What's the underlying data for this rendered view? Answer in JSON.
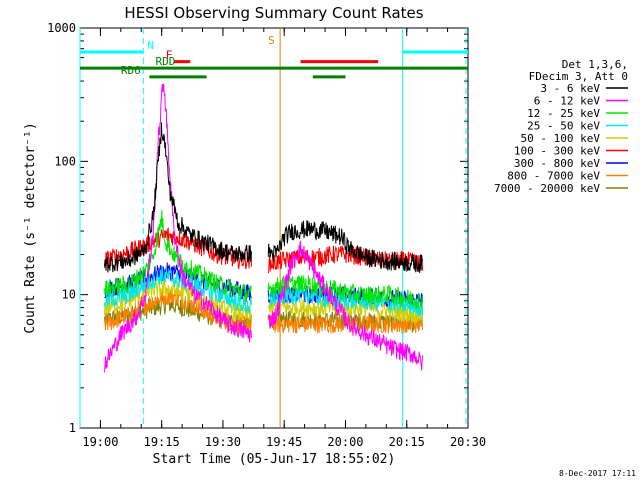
{
  "title": "HESSI Observing Summary Count Rates",
  "footer_date": "8-Dec-2017 17:11",
  "chart_data": {
    "type": "line",
    "xlabel": "Start Time (05-Jun-17 18:55:02)",
    "ylabel": "Count Rate (s⁻¹ detector⁻¹)",
    "yscale": "log",
    "ylim": [
      1,
      1000
    ],
    "xlim_minutes": [
      0,
      95
    ],
    "yticks": [
      {
        "v": 1,
        "label": "1"
      },
      {
        "v": 10,
        "label": "10"
      },
      {
        "v": 100,
        "label": "100"
      },
      {
        "v": 1000,
        "label": "1000"
      }
    ],
    "xticks": [
      {
        "t": 5,
        "label": "19:00"
      },
      {
        "t": 20,
        "label": "19:15"
      },
      {
        "t": 35,
        "label": "19:30"
      },
      {
        "t": 50,
        "label": "19:45"
      },
      {
        "t": 65,
        "label": "20:00"
      },
      {
        "t": 80,
        "label": "20:15"
      },
      {
        "t": 95,
        "label": "20:30"
      }
    ],
    "legend_header": [
      "Det 1,3,6,",
      "FDecim 3, Att 0"
    ],
    "series": [
      {
        "name": "3 - 6 keV",
        "color": "#000000",
        "points": [
          [
            6,
            17
          ],
          [
            12,
            18
          ],
          [
            16,
            22
          ],
          [
            18,
            40
          ],
          [
            19,
            90
          ],
          [
            20,
            185
          ],
          [
            21,
            120
          ],
          [
            22,
            60
          ],
          [
            24,
            35
          ],
          [
            27,
            28
          ],
          [
            30,
            25
          ],
          [
            34,
            22
          ],
          [
            38,
            20
          ],
          [
            46,
            21
          ],
          [
            48,
            20
          ],
          [
            50,
            27
          ],
          [
            52,
            30
          ],
          [
            56,
            31
          ],
          [
            60,
            30
          ],
          [
            64,
            27
          ],
          [
            66,
            22
          ],
          [
            70,
            19
          ],
          [
            74,
            18
          ],
          [
            84,
            17
          ]
        ]
      },
      {
        "name": "6 - 12 keV",
        "color": "#ff00ff",
        "points": [
          [
            6,
            3
          ],
          [
            10,
            5
          ],
          [
            14,
            7
          ],
          [
            16,
            10
          ],
          [
            18,
            30
          ],
          [
            19,
            120
          ],
          [
            20,
            300
          ],
          [
            20.5,
            400
          ],
          [
            21,
            250
          ],
          [
            22,
            80
          ],
          [
            23,
            30
          ],
          [
            25,
            14
          ],
          [
            28,
            10
          ],
          [
            32,
            8
          ],
          [
            36,
            6
          ],
          [
            42,
            5
          ],
          [
            48,
            7
          ],
          [
            52,
            18
          ],
          [
            54,
            22
          ],
          [
            56,
            18
          ],
          [
            58,
            14
          ],
          [
            62,
            9
          ],
          [
            66,
            6
          ],
          [
            70,
            5
          ],
          [
            76,
            4
          ],
          [
            82,
            3.5
          ],
          [
            84,
            3
          ]
        ]
      },
      {
        "name": "12 - 25 keV",
        "color": "#00e600",
        "points": [
          [
            6,
            11
          ],
          [
            12,
            12
          ],
          [
            16,
            15
          ],
          [
            18,
            20
          ],
          [
            20,
            38
          ],
          [
            21,
            25
          ],
          [
            24,
            18
          ],
          [
            28,
            15
          ],
          [
            34,
            12
          ],
          [
            42,
            10
          ],
          [
            46,
            11
          ],
          [
            50,
            12
          ],
          [
            56,
            12
          ],
          [
            62,
            11
          ],
          [
            68,
            10
          ],
          [
            76,
            10
          ],
          [
            84,
            9
          ]
        ]
      },
      {
        "name": "25 - 50 keV",
        "color": "#00e6e6",
        "points": [
          [
            6,
            9
          ],
          [
            12,
            10
          ],
          [
            16,
            12
          ],
          [
            20,
            14
          ],
          [
            24,
            13
          ],
          [
            28,
            12
          ],
          [
            34,
            10
          ],
          [
            42,
            8
          ],
          [
            46,
            9
          ],
          [
            50,
            10
          ],
          [
            56,
            10
          ],
          [
            62,
            9
          ],
          [
            70,
            9
          ],
          [
            84,
            8
          ]
        ]
      },
      {
        "name": "50 - 100 keV",
        "color": "#d0d000",
        "points": [
          [
            6,
            8
          ],
          [
            12,
            9
          ],
          [
            18,
            11
          ],
          [
            22,
            11
          ],
          [
            28,
            10
          ],
          [
            34,
            8
          ],
          [
            42,
            7
          ],
          [
            46,
            8
          ],
          [
            52,
            8
          ],
          [
            60,
            8
          ],
          [
            70,
            8
          ],
          [
            84,
            7
          ]
        ]
      },
      {
        "name": "100 - 300 keV",
        "color": "#ff0000",
        "points": [
          [
            6,
            18
          ],
          [
            10,
            20
          ],
          [
            14,
            22
          ],
          [
            18,
            25
          ],
          [
            21,
            28
          ],
          [
            24,
            27
          ],
          [
            28,
            24
          ],
          [
            32,
            21
          ],
          [
            36,
            19
          ],
          [
            42,
            18
          ],
          [
            46,
            17
          ],
          [
            50,
            18
          ],
          [
            54,
            19
          ],
          [
            58,
            19
          ],
          [
            62,
            20
          ],
          [
            66,
            20
          ],
          [
            70,
            19
          ],
          [
            74,
            18
          ],
          [
            80,
            18
          ],
          [
            84,
            17
          ]
        ]
      },
      {
        "name": "300 - 800 keV",
        "color": "#0000ff",
        "points": [
          [
            6,
            11
          ],
          [
            12,
            12
          ],
          [
            18,
            14
          ],
          [
            22,
            15
          ],
          [
            26,
            14
          ],
          [
            32,
            12
          ],
          [
            38,
            11
          ],
          [
            42,
            10
          ],
          [
            46,
            10
          ],
          [
            50,
            10
          ],
          [
            56,
            10
          ],
          [
            64,
            10
          ],
          [
            72,
            9.5
          ],
          [
            84,
            9
          ]
        ]
      },
      {
        "name": "800 - 7000 keV",
        "color": "#ff8000",
        "points": [
          [
            6,
            6
          ],
          [
            12,
            7
          ],
          [
            18,
            9
          ],
          [
            22,
            10
          ],
          [
            26,
            9
          ],
          [
            32,
            7
          ],
          [
            38,
            6
          ],
          [
            42,
            6
          ],
          [
            46,
            6
          ],
          [
            50,
            6
          ],
          [
            56,
            6
          ],
          [
            64,
            6
          ],
          [
            72,
            6
          ],
          [
            84,
            6
          ]
        ]
      },
      {
        "name": "7000 - 20000 keV",
        "color": "#808000",
        "points": [
          [
            6,
            6.5
          ],
          [
            12,
            7
          ],
          [
            18,
            8
          ],
          [
            22,
            8.5
          ],
          [
            28,
            7.5
          ],
          [
            34,
            6.5
          ],
          [
            42,
            6
          ],
          [
            46,
            6.5
          ],
          [
            56,
            6.5
          ],
          [
            70,
            6.3
          ],
          [
            84,
            6
          ]
        ]
      }
    ],
    "flag_bars": [
      {
        "label": "N",
        "color": "#00ffff",
        "y": 660,
        "segments": [
          [
            0,
            15.5
          ],
          [
            79,
            95
          ]
        ]
      },
      {
        "label": "F",
        "color": "#ff0000",
        "y": 560,
        "segments": [
          [
            23,
            27
          ],
          [
            54,
            73
          ]
        ]
      },
      {
        "label": "RDD",
        "color": "#008000",
        "y": 500,
        "segments": [
          [
            0,
            95
          ]
        ]
      },
      {
        "label": "RD6",
        "color": "#008000",
        "y": 430,
        "segments": [
          [
            17,
            31
          ],
          [
            57,
            65
          ]
        ]
      }
    ],
    "vertical_markers": [
      {
        "t": 0,
        "color": "#00ffff",
        "dashed": false
      },
      {
        "t": 15.5,
        "color": "#00ffff",
        "dashed": true
      },
      {
        "t": 79,
        "color": "#00ffff",
        "dashed": false
      },
      {
        "t": 94.5,
        "color": "#00ffff",
        "dashed": true
      },
      {
        "t": 49,
        "color": "#e08000",
        "dashed": false,
        "label": "S"
      }
    ],
    "data_gaps": [
      [
        42,
        46
      ],
      [
        84,
        95
      ]
    ]
  }
}
